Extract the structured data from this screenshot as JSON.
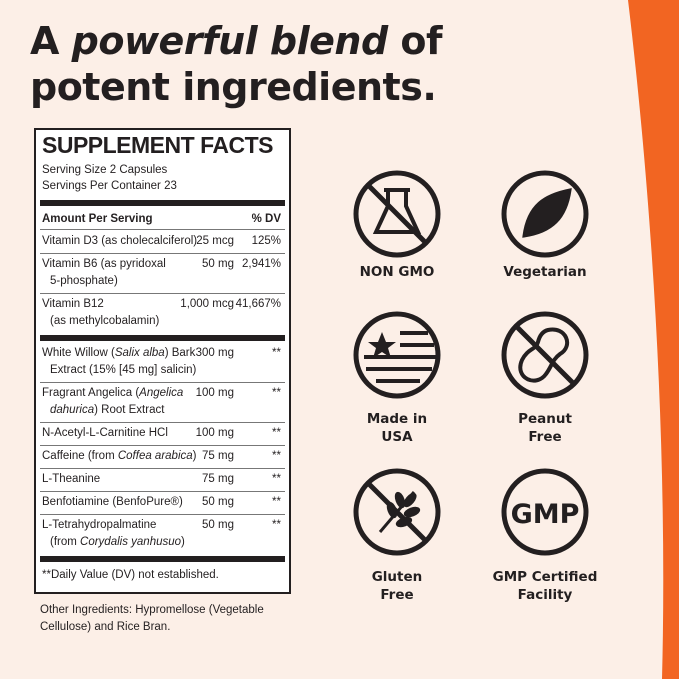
{
  "title": [
    [
      {
        "text": "A "
      },
      {
        "text": "powerful blend",
        "italic": true
      },
      {
        "text": " of"
      }
    ],
    [
      {
        "text": "potent ingredients."
      }
    ]
  ],
  "facts": {
    "heading": "SUPPLEMENT FACTS",
    "serving_size": "Serving Size 2 Capsules",
    "servings_per_container": "Servings Per Container 23",
    "amount_header": "Amount Per Serving",
    "dv_header": "% DV",
    "rows": [
      {
        "name": [
          [
            {
              "text": "Vitamin D3 (as cholecalciferol)"
            }
          ]
        ],
        "amount": "25 mcg",
        "dv": "125%"
      },
      {
        "name": [
          [
            {
              "text": "Vitamin B6 (as pyridoxal"
            }
          ],
          [
            {
              "text": "5-phosphate)"
            }
          ]
        ],
        "amount": "50 mg",
        "dv": "2,941%"
      },
      {
        "name": [
          [
            {
              "text": "Vitamin B12"
            }
          ],
          [
            {
              "text": "(as methylcobalamin)"
            }
          ]
        ],
        "amount": "1,000 mcg",
        "dv": "41,667%"
      },
      {
        "name": [
          [
            {
              "text": "White Willow ("
            },
            {
              "text": "Salix alba",
              "italic": true
            },
            {
              "text": ") Bark"
            }
          ],
          [
            {
              "text": "Extract (15% [45 mg] salicin)"
            }
          ]
        ],
        "amount": "300 mg",
        "dv": "**"
      },
      {
        "name": [
          [
            {
              "text": "Fragrant Angelica ("
            },
            {
              "text": "Angelica",
              "italic": true
            }
          ],
          [
            {
              "text": "dahurica",
              "italic": true
            },
            {
              "text": ") Root Extract"
            }
          ]
        ],
        "amount": "100 mg",
        "dv": "**"
      },
      {
        "name": [
          [
            {
              "text": "N-Acetyl-L-Carnitine HCl"
            }
          ]
        ],
        "amount": "100 mg",
        "dv": "**"
      },
      {
        "name": [
          [
            {
              "text": "Caffeine (from "
            },
            {
              "text": "Coffea arabica",
              "italic": true
            },
            {
              "text": ")"
            }
          ]
        ],
        "amount": "75 mg",
        "dv": "**"
      },
      {
        "name": [
          [
            {
              "text": "L-Theanine"
            }
          ]
        ],
        "amount": "75 mg",
        "dv": "**"
      },
      {
        "name": [
          [
            {
              "text": "Benfotiamine (BenfoPure®)"
            }
          ]
        ],
        "amount": "50 mg",
        "dv": "**"
      },
      {
        "name": [
          [
            {
              "text": "L-Tetrahydropalmatine"
            }
          ],
          [
            {
              "text": "(from "
            },
            {
              "text": "Corydalis yanhusuo",
              "italic": true
            },
            {
              "text": ")"
            }
          ]
        ],
        "amount": "50 mg",
        "dv": "**"
      }
    ],
    "footnote": "**Daily Value (DV) not established."
  },
  "other_ingredients": [
    "Other Ingredients: Hypromellose (Vegetable",
    "Cellulose) and Rice Bran."
  ],
  "badges": [
    {
      "label": [
        "NON GMO"
      ]
    },
    {
      "label": [
        "Vegetarian"
      ]
    },
    {
      "label": [
        "Made in",
        "USA"
      ]
    },
    {
      "label": [
        "Peanut",
        "Free"
      ]
    },
    {
      "label": [
        "Gluten",
        "Free"
      ]
    },
    {
      "label": [
        "GMP Certified",
        "Facility"
      ]
    }
  ]
}
